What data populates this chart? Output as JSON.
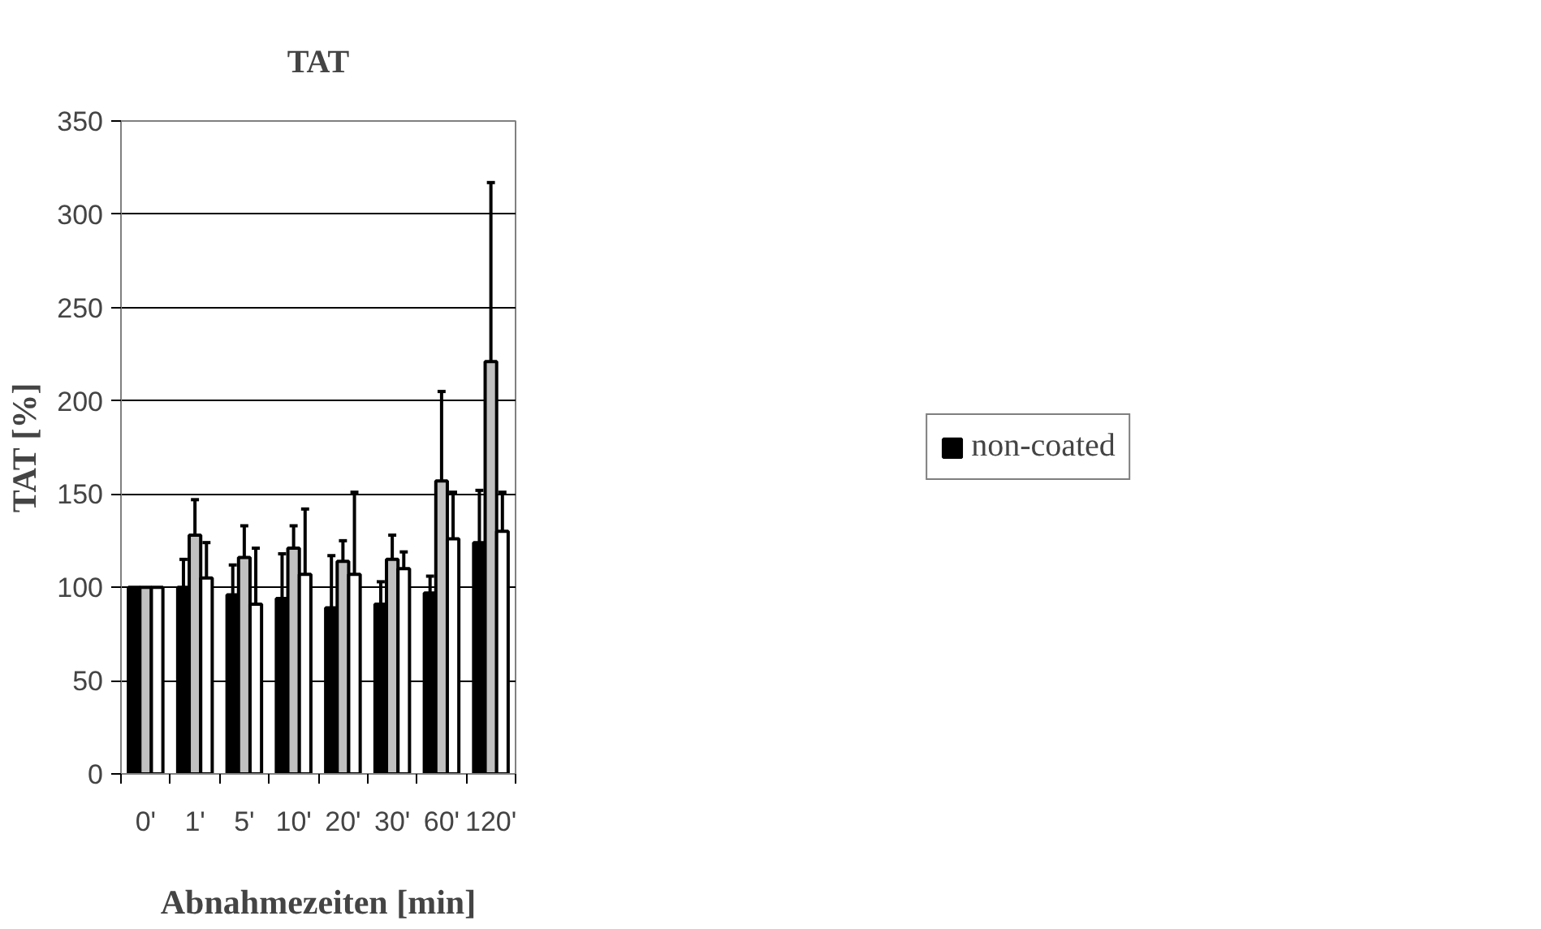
{
  "chart_data": {
    "type": "bar",
    "title": "TAT",
    "xlabel": "Abnahmezeiten [min]",
    "ylabel": "TAT [%]",
    "categories": [
      "0'",
      "1'",
      "5'",
      "10'",
      "20'",
      "30'",
      "60'",
      "120'"
    ],
    "series": [
      {
        "name": "non-coated",
        "color": "#000000",
        "values": [
          100,
          100,
          96,
          94,
          89,
          91,
          97,
          124
        ],
        "errors": [
          null,
          [
            100,
            115
          ],
          [
            96,
            112
          ],
          [
            94,
            118
          ],
          [
            89,
            117
          ],
          [
            91,
            103
          ],
          [
            97,
            106
          ],
          [
            124,
            152
          ]
        ]
      },
      {
        "color": "#c0c0c0",
        "values": [
          100,
          128,
          116,
          121,
          114,
          115,
          157,
          221
        ],
        "errors": [
          null,
          [
            128,
            147
          ],
          [
            116,
            133
          ],
          [
            121,
            133
          ],
          [
            114,
            125
          ],
          [
            115,
            128
          ],
          [
            157,
            205
          ],
          [
            221,
            317
          ]
        ]
      },
      {
        "color": "#ffffff",
        "values": [
          100,
          105,
          91,
          107,
          107,
          110,
          126,
          130
        ],
        "errors": [
          null,
          [
            105,
            124
          ],
          [
            91,
            121
          ],
          [
            107,
            142
          ],
          [
            107,
            151
          ],
          [
            110,
            119
          ],
          [
            126,
            151
          ],
          [
            130,
            151
          ]
        ]
      }
    ],
    "ylim": [
      0,
      350
    ],
    "yticks": [
      0,
      50,
      100,
      150,
      200,
      250,
      300,
      350
    ],
    "grid": "y",
    "legend": "right"
  }
}
